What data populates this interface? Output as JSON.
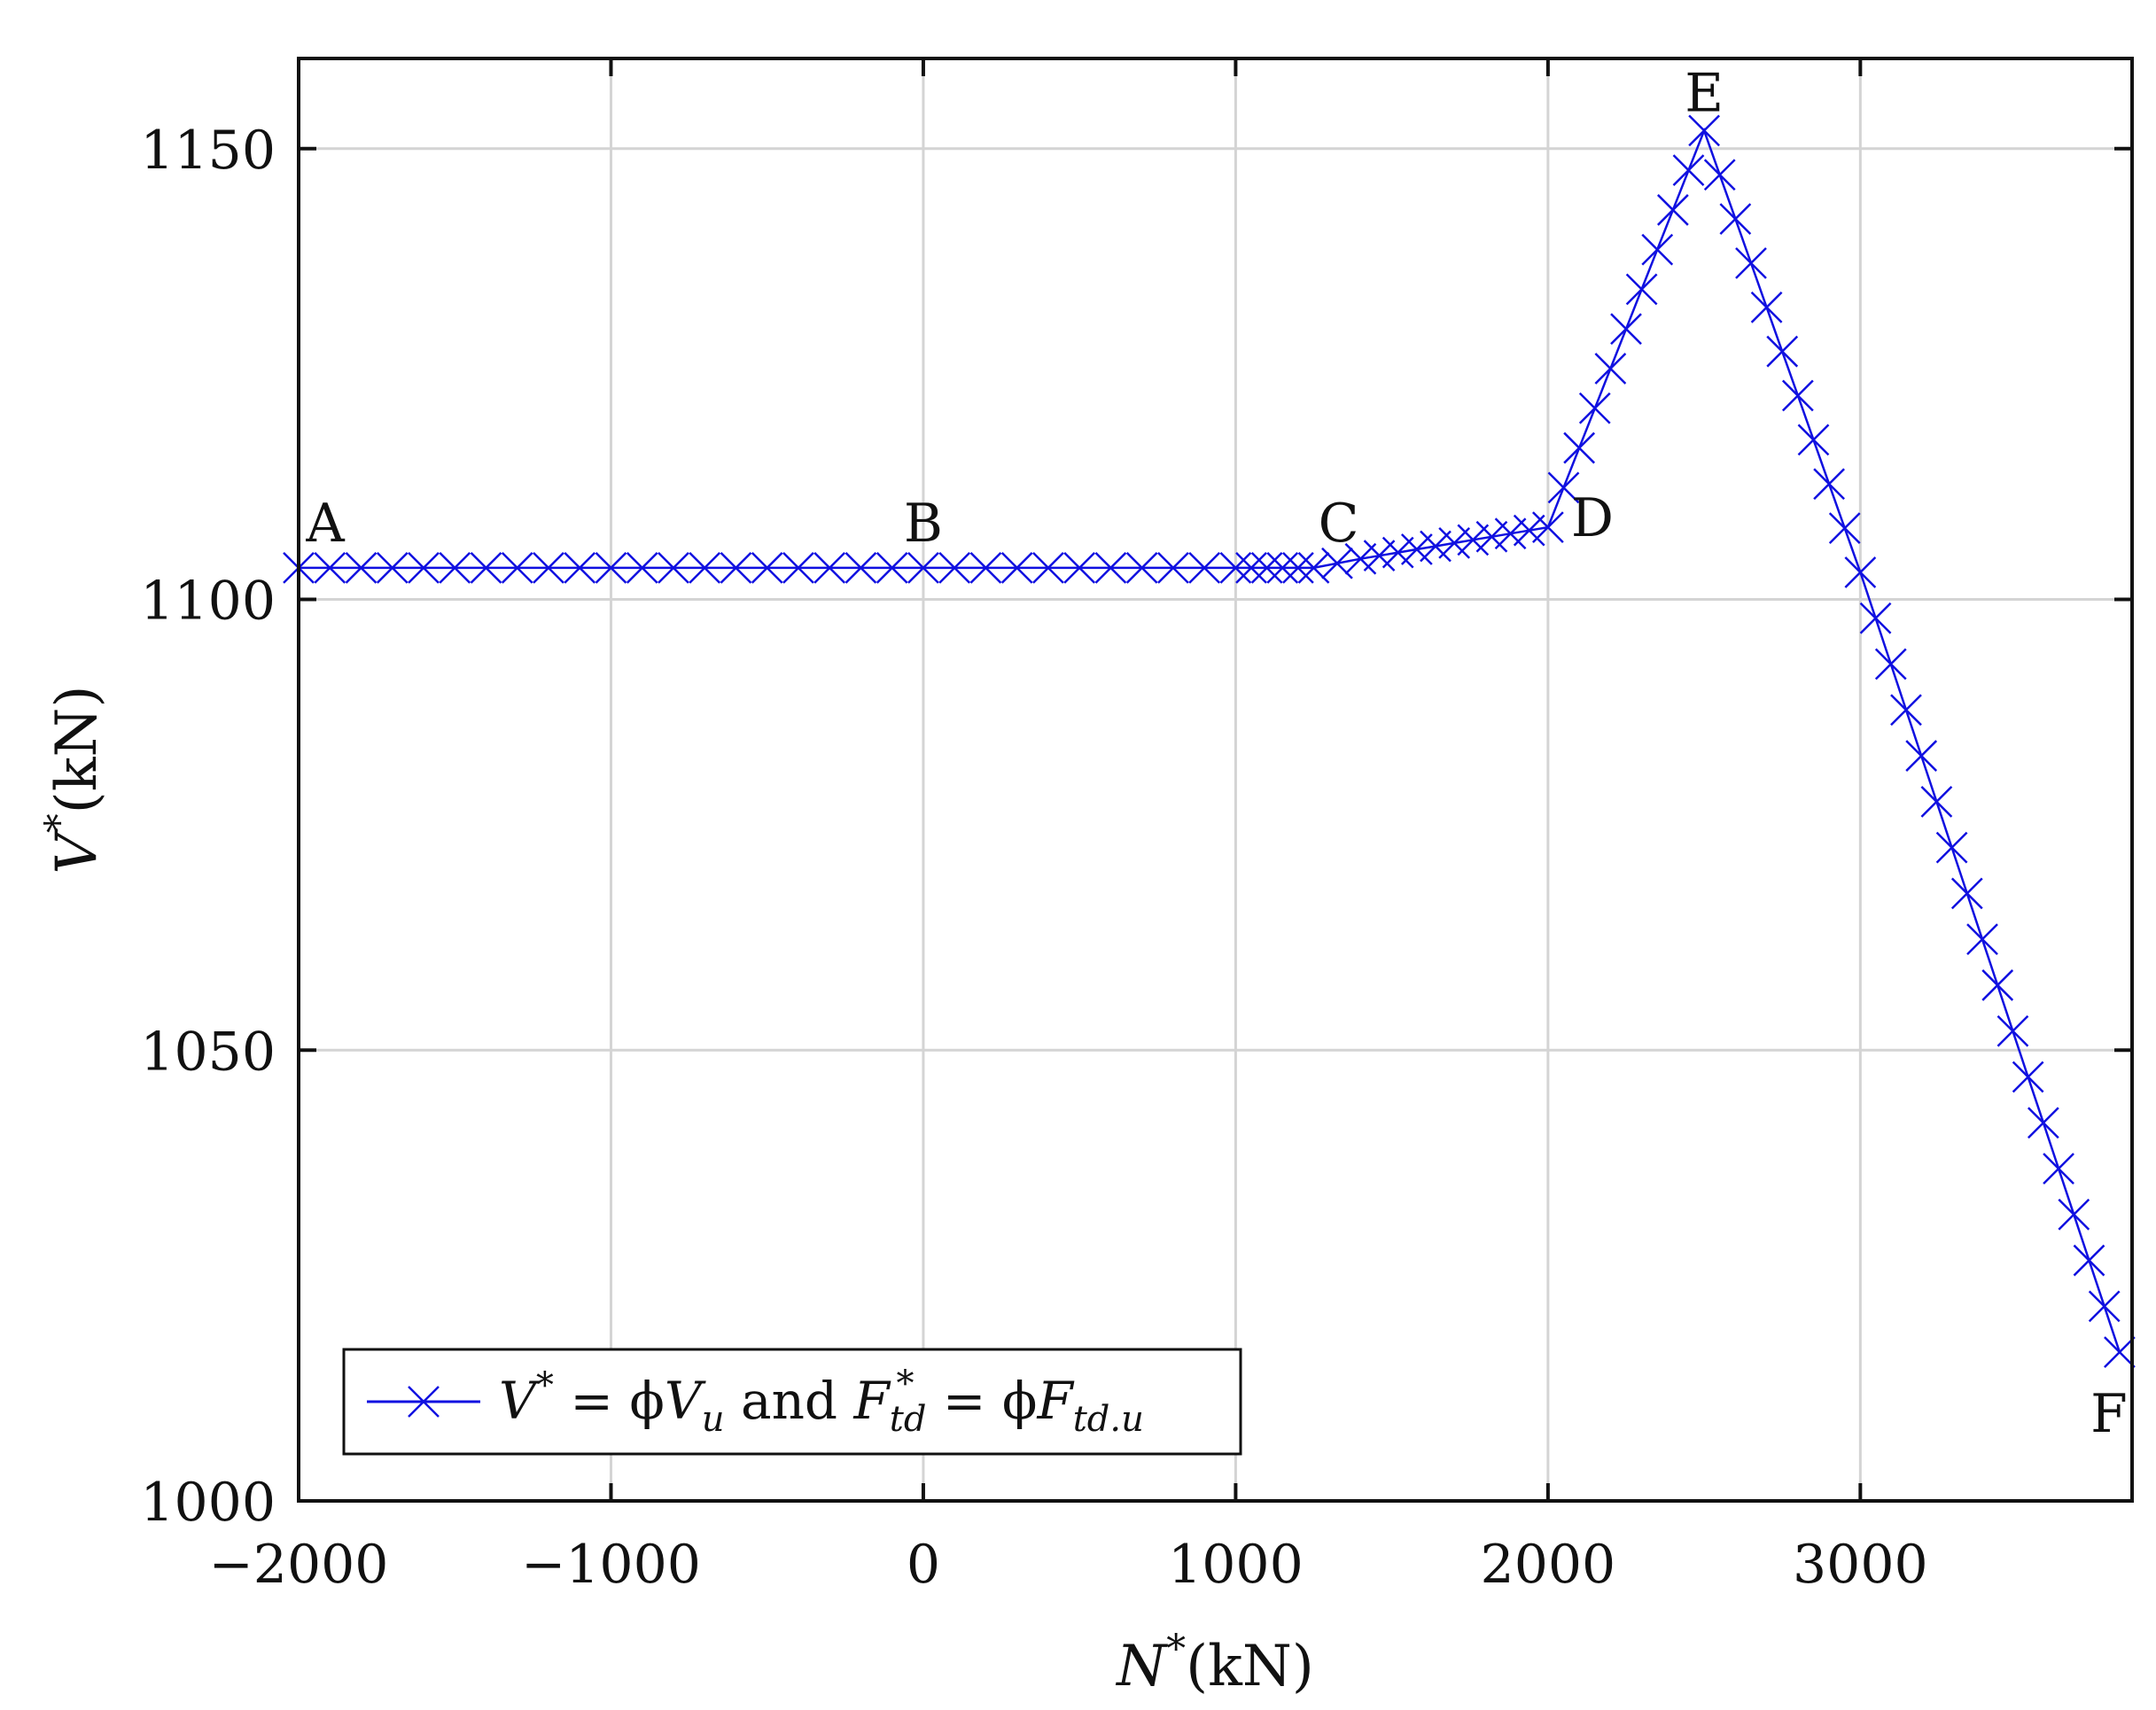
{
  "chart_data": {
    "type": "line",
    "xlabel_var": "N",
    "xlabel_sup": "*",
    "xlabel_unit": "(kN)",
    "ylabel_var": "V",
    "ylabel_sup": "*",
    "ylabel_unit": "(kN)",
    "xlim": [
      -2000,
      3870
    ],
    "ylim": [
      1000,
      1160
    ],
    "xticks": [
      -2000,
      -1000,
      0,
      1000,
      2000,
      3000
    ],
    "xtick_labels": [
      "−2000",
      "−1000",
      "0",
      "1000",
      "2000",
      "3000"
    ],
    "yticks": [
      1000,
      1050,
      1100,
      1150
    ],
    "ytick_labels": [
      "1000",
      "1050",
      "1100",
      "1150"
    ],
    "grid": true,
    "legend_position": "bottom-left",
    "series_color": "#1010e0",
    "series": [
      {
        "legend_parts": {
          "v": "V",
          "star": "*",
          "eq1": " = ϕ",
          "vu_main": "V",
          "vu_sub": "u",
          "and": " and ",
          "f": "F",
          "f_sub": "td",
          "f_sup": "*",
          "eq2": " = ϕ",
          "f2": "F",
          "f2_sub": "td.u"
        },
        "marker": "x",
        "segments": [
          {
            "from": [
              -2000,
              1103.5
            ],
            "to": [
              0,
              1103.5
            ],
            "n": 20
          },
          {
            "from": [
              0,
              1103.5
            ],
            "to": [
              1000,
              1103.5
            ],
            "n": 10
          },
          {
            "from": [
              1000,
              1103.5
            ],
            "to": [
              1250,
              1103.5
            ],
            "n": 5
          },
          {
            "from": [
              1250,
              1103.5
            ],
            "to": [
              1400,
              1104.5
            ],
            "n": 2
          },
          {
            "from": [
              1400,
              1104.5
            ],
            "to": [
              2000,
              1108
            ],
            "n": 10
          },
          {
            "from": [
              2000,
              1108
            ],
            "to": [
              2500,
              1152
            ],
            "n": 10
          },
          {
            "from": [
              2500,
              1152
            ],
            "to": [
              3000,
              1103
            ],
            "n": 10
          },
          {
            "from": [
              3000,
              1103
            ],
            "to": [
              3830,
              1016.5
            ],
            "n": 17
          }
        ],
        "start_point": [
          -2000,
          1103.5
        ]
      }
    ],
    "annotations": [
      {
        "label": "A",
        "x": -2000,
        "y": 1103.5
      },
      {
        "label": "B",
        "x": 0,
        "y": 1103.5
      },
      {
        "label": "C",
        "x": 1250,
        "y": 1103.5
      },
      {
        "label": "D",
        "x": 2000,
        "y": 1108
      },
      {
        "label": "E",
        "x": 2500,
        "y": 1152
      },
      {
        "label": "F",
        "x": 3830,
        "y": 1016.5
      }
    ]
  }
}
